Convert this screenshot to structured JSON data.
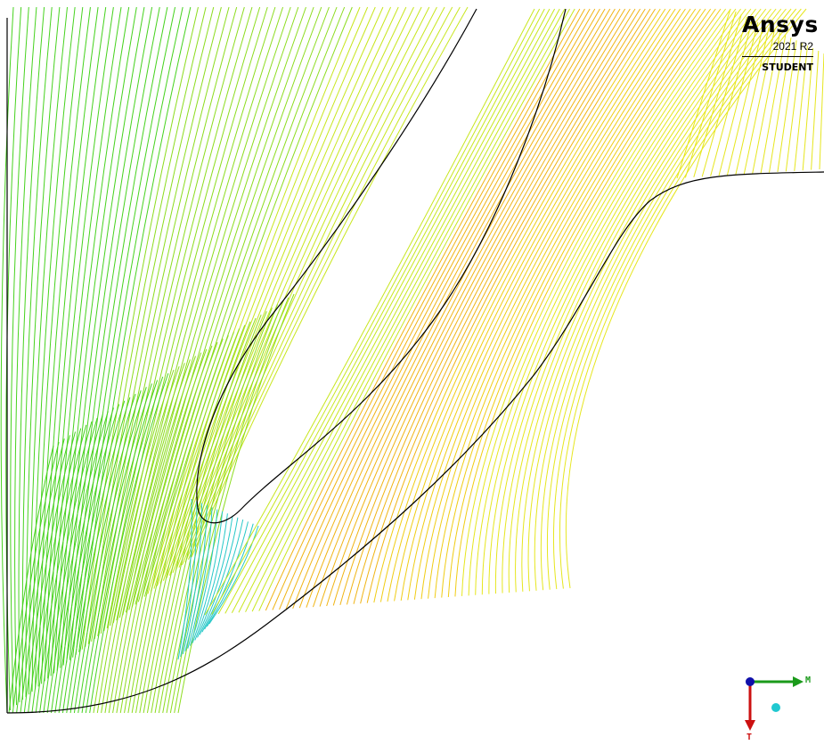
{
  "logo": {
    "brand": "Ansys",
    "version": "2021 R2",
    "edition": "STUDENT"
  },
  "triad": {
    "x_label": "M",
    "y_label": "T",
    "x_color": "#1a9a1a",
    "y_color": "#cc1010",
    "origin_color": "#1010aa",
    "marker_color": "#20c8d0"
  },
  "colors": {
    "outline": "#000000",
    "green": "#46d21e",
    "lime": "#8cdc1e",
    "yellow_green": "#c8e61e",
    "yellow": "#e6e61e",
    "gold": "#f0cc14",
    "orange": "#f0b414",
    "cyan": "#28c8c8"
  }
}
